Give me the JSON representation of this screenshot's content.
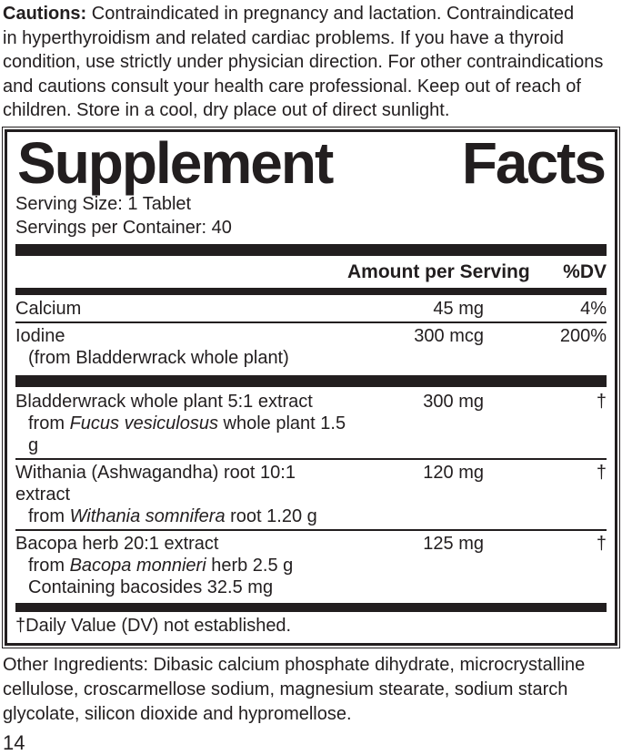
{
  "cautions": {
    "label": "Cautions:",
    "text": "Contraindicated in pregnancy and lactation. Contraindicated\nin hyperthyroidism and related cardiac problems. If you have a thyroid\ncondition, use strictly under physician direction. For other contraindications\nand cautions consult your health care professional. Keep out of reach of\nchildren. Store in a cool, dry place out of direct sunlight."
  },
  "panel": {
    "title_word1": "Supplement",
    "title_word2": "Facts",
    "serving_size": "Serving Size: 1 Tablet",
    "servings_per_container": "Servings per Container: 40",
    "col_amount": "Amount per Serving",
    "col_dv": "%DV",
    "rows": [
      {
        "name": "Calcium",
        "amount": "45 mg",
        "dv": "4%"
      },
      {
        "name": "Iodine",
        "amount": "300 mcg",
        "dv": "200%",
        "sub": "(from Bladderwrack whole plant)"
      },
      {
        "name": "Bladderwrack whole plant 5:1 extract",
        "amount": "300 mg",
        "dv": "†",
        "sub_pre": "from ",
        "sub_italic": "Fucus vesiculosus",
        "sub_post": " whole plant 1.5 g"
      },
      {
        "name": "Withania (Ashwagandha) root 10:1 extract",
        "amount": "120 mg",
        "dv": "†",
        "sub_pre": "from ",
        "sub_italic": "Withania somnifera",
        "sub_post": " root 1.20 g"
      },
      {
        "name": "Bacopa herb 20:1 extract",
        "amount": "125 mg",
        "dv": "†",
        "sub_pre": "from ",
        "sub_italic": "Bacopa monnieri",
        "sub_post": " herb 2.5 g",
        "sub2": "Containing bacosides 32.5 mg"
      }
    ],
    "footnote": "†Daily Value (DV) not established."
  },
  "other_ingredients": "Other Ingredients: Dibasic calcium phosphate dihydrate, microcrystalline\ncellulose, croscarmellose sodium, magnesium stearate, sodium starch\nglycolate, silicon dioxide and hypromellose.",
  "page_number": "14"
}
